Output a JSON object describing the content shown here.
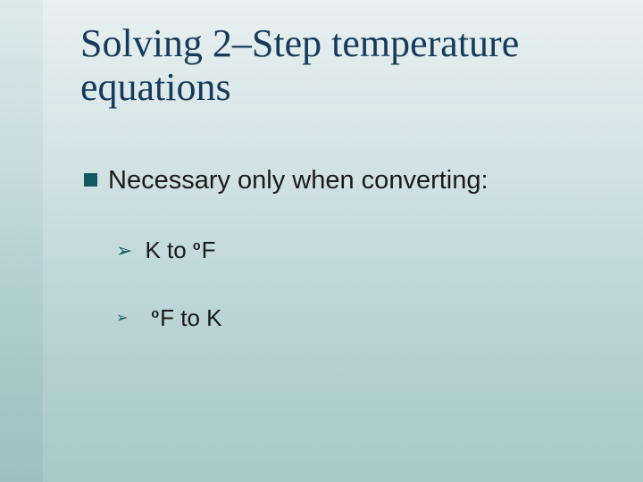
{
  "colors": {
    "title_color": "#153a5b",
    "bullet_color": "#0f5a63",
    "text_color": "#1a1a1a",
    "strip_gradient_top": "#dce9e9",
    "strip_gradient_bottom": "#9cc0c2",
    "main_gradient_top": "#e8f0f0",
    "main_gradient_bottom": "#a9c8ca"
  },
  "typography": {
    "title_font": "Times New Roman",
    "title_size_pt": 33,
    "body_font": "Arial",
    "bullet_text_size_pt": 22,
    "sub_text_size_pt": 20
  },
  "layout": {
    "slide_width": 720,
    "slide_height": 540,
    "left_strip_width": 48
  },
  "title": "Solving 2–Step temperature equations",
  "bullet": {
    "text": "Necessary only when converting:"
  },
  "sub_items": [
    {
      "prefix": "K to ",
      "deg": "o",
      "suffix": "F"
    },
    {
      "prefix": "",
      "deg": "o",
      "suffix": "F to K"
    }
  ],
  "chevron_glyph": "➢"
}
